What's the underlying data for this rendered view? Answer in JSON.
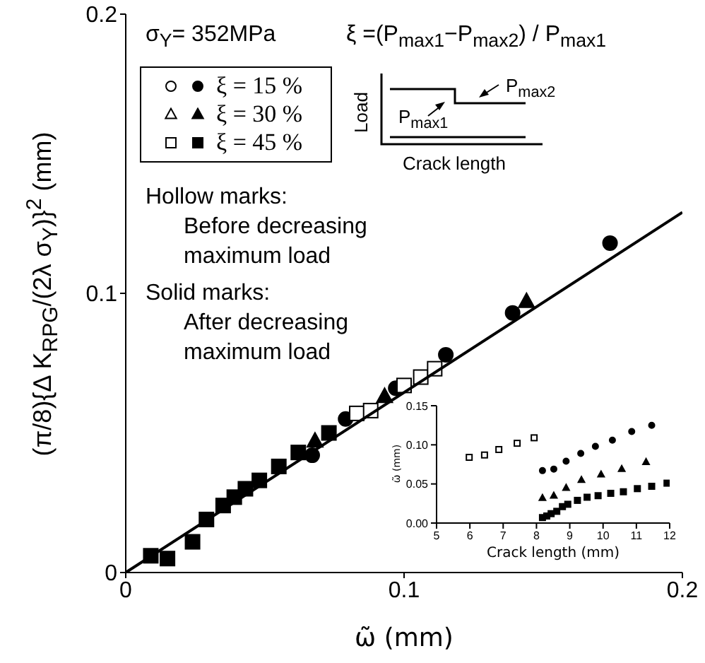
{
  "chart_data": [
    {
      "type": "scatter",
      "xlabel": "ω̃  (mm)",
      "ylabel": "(π/8){Δ K$_{RPG}$/(2λ σ$_{Y}$)}$^{2}$  (mm)",
      "xlim": [
        0,
        0.2
      ],
      "ylim": [
        0,
        0.2
      ],
      "xticks": [
        0,
        0.1,
        0.2
      ],
      "yticks": [
        0,
        0.1,
        0.2
      ],
      "legend": "top left",
      "annotations": [
        "σ$_{Y}$= 352MPa",
        "ξ =(P$_{max1}$−P$_{max2}$) / P$_{max1}$",
        "Load",
        "P$_{max1}$",
        "P$_{max2}$",
        "Crack length",
        "Hollow marks:\nBefore decreasing\nmaximum load",
        "Solid marks:\nAfter decreasing\nmaximum load"
      ],
      "series": [
        {
          "name": "ξ = 15 %",
          "marker": "circle",
          "color": "#000000",
          "x": [
            0.067,
            0.079,
            0.097,
            0.115,
            0.139,
            0.174
          ],
          "values": [
            0.042,
            0.055,
            0.066,
            0.078,
            0.093,
            0.118
          ]
        },
        {
          "name": "ξ = 30 %",
          "marker": "triangle",
          "color": "#000000",
          "x": [
            0.068,
            0.093,
            0.144
          ],
          "values": [
            0.047,
            0.063,
            0.097
          ]
        },
        {
          "name": "ξ = 45 %",
          "marker": "square",
          "color": "#000000",
          "x": [
            0.009,
            0.015,
            0.024,
            0.029,
            0.035,
            0.039,
            0.043,
            0.048,
            0.055,
            0.062,
            0.073
          ],
          "values": [
            0.006,
            0.005,
            0.011,
            0.019,
            0.024,
            0.027,
            0.03,
            0.033,
            0.038,
            0.043,
            0.05
          ]
        },
        {
          "marker": "square",
          "color": "#ffffff",
          "x": [
            0.083,
            0.088,
            0.1,
            0.106,
            0.111
          ],
          "values": [
            0.057,
            0.058,
            0.067,
            0.07,
            0.073
          ]
        },
        {
          "type": "line",
          "marker": "none",
          "color": "#000000",
          "x": [
            0,
            0.2
          ],
          "values": [
            0,
            0.129
          ]
        }
      ]
    },
    {
      "type": "scatter",
      "xlabel": "Crack length  (mm)",
      "ylabel": "ω̃ (mm)",
      "xlim": [
        5,
        12
      ],
      "ylim": [
        0,
        0.15
      ],
      "xticks": [
        5,
        6,
        7,
        8,
        9,
        10,
        11,
        12
      ],
      "yticks": [
        {
          "value": 0,
          "label": "0.00"
        },
        {
          "value": 0.05,
          "label": "0.05"
        },
        {
          "value": 0.1,
          "label": "0.10"
        },
        {
          "value": 0.15,
          "label": "0.15"
        }
      ],
      "series": [
        {
          "marker": "square",
          "color": "#ffffff",
          "x": [
            5.98,
            6.44,
            6.87,
            7.42,
            7.93
          ],
          "values": [
            0.084,
            0.087,
            0.094,
            0.102,
            0.109
          ]
        },
        {
          "marker": "circle",
          "color": "#000000",
          "x": [
            8.18,
            8.52,
            8.89,
            9.33,
            9.77,
            10.28,
            10.86,
            11.46
          ],
          "values": [
            0.067,
            0.069,
            0.079,
            0.089,
            0.098,
            0.106,
            0.117,
            0.125
          ]
        },
        {
          "marker": "triangle",
          "color": "#000000",
          "x": [
            8.18,
            8.52,
            8.89,
            9.35,
            9.94,
            10.56,
            11.29
          ],
          "values": [
            0.032,
            0.035,
            0.045,
            0.055,
            0.062,
            0.069,
            0.078
          ]
        },
        {
          "marker": "square",
          "color": "#000000",
          "x": [
            8.18,
            8.31,
            8.44,
            8.61,
            8.78,
            8.94,
            9.23,
            9.52,
            9.85,
            10.23,
            10.61,
            11.03,
            11.46,
            11.92
          ],
          "values": [
            0.007,
            0.009,
            0.012,
            0.015,
            0.021,
            0.024,
            0.029,
            0.033,
            0.035,
            0.038,
            0.04,
            0.044,
            0.047,
            0.051
          ]
        }
      ]
    }
  ]
}
